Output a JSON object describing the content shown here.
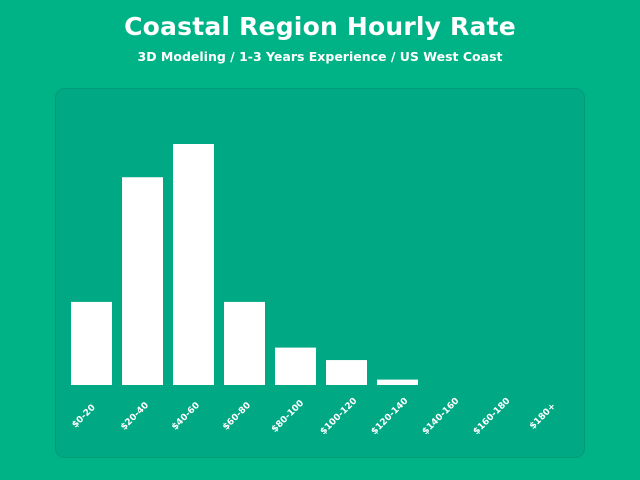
{
  "header": {
    "title": "Coastal Region Hourly Rate",
    "subtitle": "3D Modeling / 1-3 Years Experience / US West Coast"
  },
  "colors": {
    "background": "#00b386",
    "panel": "#00a884",
    "bar": "#ffffff"
  },
  "chart_data": {
    "type": "bar",
    "title": "Coastal Region Hourly Rate",
    "subtitle": "3D Modeling / 1-3 Years Experience / US West Coast",
    "categories": [
      "$0-20",
      "$20-40",
      "$40-60",
      "$60-80",
      "$80-100",
      "$100-120",
      "$120-140",
      "$140-160",
      "$160-180",
      "$180+"
    ],
    "values": [
      20,
      50,
      58,
      20,
      9,
      6,
      1.3,
      0,
      0,
      0
    ],
    "xlabel": "",
    "ylabel": "",
    "ylim": [
      0,
      58
    ],
    "grid": false,
    "legend": "none"
  }
}
